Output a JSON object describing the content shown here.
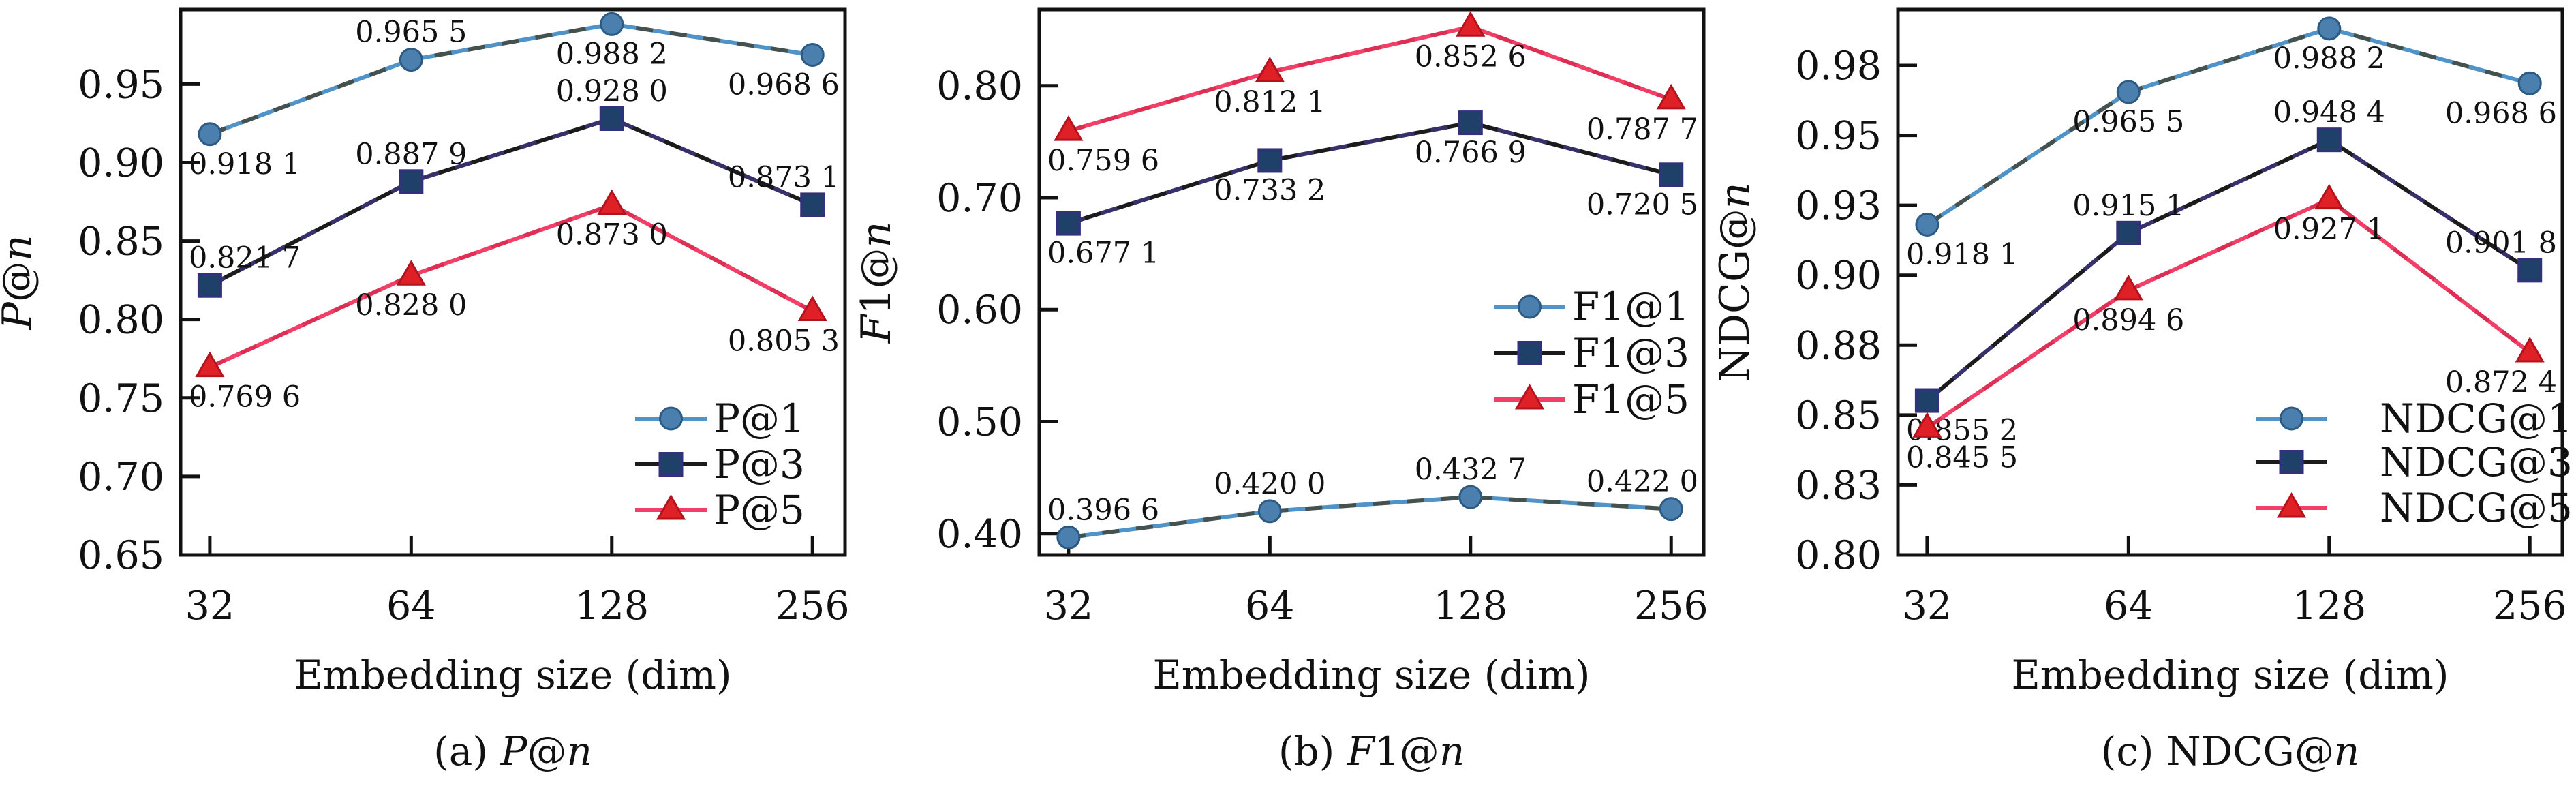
{
  "figure": {
    "background": "#ffffff",
    "frame_color": "#111111",
    "text_color": "#111111"
  },
  "chart_data": [
    {
      "type": "line",
      "panel_id": "a",
      "caption": [
        {
          "t": "(a) ",
          "i": false
        },
        {
          "t": "P",
          "i": true
        },
        {
          "t": "@",
          "i": false
        },
        {
          "t": "n",
          "i": true
        }
      ],
      "ylabel": [
        {
          "t": "P",
          "i": true
        },
        {
          "t": "@",
          "i": false
        },
        {
          "t": "n",
          "i": true
        }
      ],
      "xlabel": "Embedding size (dim)",
      "categories": [
        "32",
        "64",
        "128",
        "256"
      ],
      "x_values": [
        32,
        64,
        128,
        256
      ],
      "ylim": [
        0.65,
        0.9975
      ],
      "yticks": [
        {
          "v": 0.65,
          "label": "0.65"
        },
        {
          "v": 0.7,
          "label": "0.70"
        },
        {
          "v": 0.75,
          "label": "0.75"
        },
        {
          "v": 0.8,
          "label": "0.80"
        },
        {
          "v": 0.85,
          "label": "0.85"
        },
        {
          "v": 0.9,
          "label": "0.90"
        },
        {
          "v": 0.95,
          "label": "0.95"
        }
      ],
      "legend": {
        "position": "lower right",
        "line_x": 932,
        "label_x": 1047,
        "rows_y": [
          614,
          681,
          748
        ]
      },
      "series": [
        {
          "name": "P@1",
          "marker": "circle",
          "line_color": "#4f93c8",
          "overlay_color": "#454d47",
          "overlay_opacity": 0.95,
          "marker_fill": "#4a7fae",
          "marker_edge": "#2d5a82",
          "values": [
            0.9181,
            0.9655,
            0.9882,
            0.9686
          ],
          "point_labels": [
            "0.918 1",
            "0.965 5",
            "0.988 2",
            "0.968 6"
          ],
          "label_pos": [
            "below",
            "above",
            "below",
            "below"
          ]
        },
        {
          "name": "P@3",
          "marker": "square",
          "line_color": "#1b1b1b",
          "overlay_color": "#413a8c",
          "overlay_opacity": 0.7,
          "marker_fill": "#1f4068",
          "marker_edge": "#352f7e",
          "values": [
            0.8217,
            0.8879,
            0.928,
            0.8731
          ],
          "point_labels": [
            "0.821 7",
            "0.887 9",
            "0.928 0",
            "0.873 1"
          ],
          "label_pos": [
            "above",
            "above",
            "above",
            "above"
          ]
        },
        {
          "name": "P@5",
          "marker": "triangle",
          "line_color": "#f23f68",
          "overlay_color": "#c41d3a",
          "overlay_opacity": 0.45,
          "marker_fill": "#df2127",
          "marker_edge": "#b2131d",
          "values": [
            0.7696,
            0.828,
            0.873,
            0.8053
          ],
          "point_labels": [
            "0.769 6",
            "0.828 0",
            "0.873 0",
            "0.805 3"
          ],
          "label_pos": [
            "below",
            "below",
            "below",
            "below"
          ]
        }
      ]
    },
    {
      "type": "line",
      "panel_id": "b",
      "caption": [
        {
          "t": "(b) ",
          "i": false
        },
        {
          "t": "F",
          "i": true
        },
        {
          "t": "1@",
          "i": false
        },
        {
          "t": "n",
          "i": true
        }
      ],
      "ylabel": [
        {
          "t": "F",
          "i": true
        },
        {
          "t": "1@",
          "i": false
        },
        {
          "t": "n",
          "i": true
        }
      ],
      "xlabel": "Embedding size (dim)",
      "categories": [
        "32",
        "64",
        "128",
        "256"
      ],
      "x_values": [
        32,
        64,
        128,
        256
      ],
      "ylim": [
        0.381,
        0.868
      ],
      "yticks": [
        {
          "v": 0.4,
          "label": "0.40"
        },
        {
          "v": 0.5,
          "label": "0.50"
        },
        {
          "v": 0.6,
          "label": "0.60"
        },
        {
          "v": 0.7,
          "label": "0.70"
        },
        {
          "v": 0.8,
          "label": "0.80"
        }
      ],
      "legend": {
        "position": "center right",
        "line_x": 932,
        "label_x": 1047,
        "rows_y": [
          450,
          518,
          586
        ]
      },
      "series": [
        {
          "name": "F1@1",
          "marker": "circle",
          "line_color": "#4f93c8",
          "overlay_color": "#454d47",
          "overlay_opacity": 0.95,
          "marker_fill": "#4a7fae",
          "marker_edge": "#2d5a82",
          "values": [
            0.3966,
            0.42,
            0.4327,
            0.422
          ],
          "point_labels": [
            "0.396 6",
            "0.420 0",
            "0.432 7",
            "0.422 0"
          ],
          "label_pos": [
            "above",
            "above",
            "above",
            "above"
          ]
        },
        {
          "name": "F1@3",
          "marker": "square",
          "line_color": "#1b1b1b",
          "overlay_color": "#413a8c",
          "overlay_opacity": 0.7,
          "marker_fill": "#1f4068",
          "marker_edge": "#352f7e",
          "values": [
            0.6771,
            0.7332,
            0.7669,
            0.7205
          ],
          "point_labels": [
            "0.677 1",
            "0.733 2",
            "0.766 9",
            "0.720 5"
          ],
          "label_pos": [
            "below",
            "below",
            "below",
            "below"
          ]
        },
        {
          "name": "F1@5",
          "marker": "triangle",
          "line_color": "#f23f68",
          "overlay_color": "#c41d3a",
          "overlay_opacity": 0.45,
          "marker_fill": "#df2127",
          "marker_edge": "#b2131d",
          "values": [
            0.7596,
            0.8121,
            0.8526,
            0.7877
          ],
          "point_labels": [
            "0.759 6",
            "0.812 1",
            "0.852 6",
            "0.787 7"
          ],
          "label_pos": [
            "below",
            "below",
            "below",
            "below"
          ]
        }
      ]
    },
    {
      "type": "line",
      "panel_id": "c",
      "caption": [
        {
          "t": "(c) ",
          "i": false
        },
        {
          "t": "NDCG@",
          "i": false
        },
        {
          "t": "n",
          "i": true
        }
      ],
      "ylabel": [
        {
          "t": "NDCG@",
          "i": false
        },
        {
          "t": "n",
          "i": true
        }
      ],
      "xlabel": "Embedding size (dim)",
      "categories": [
        "32",
        "64",
        "128",
        "256"
      ],
      "x_values": [
        32,
        64,
        128,
        256
      ],
      "ylim": [
        0.8,
        0.995
      ],
      "yticks": [
        {
          "v": 0.8,
          "label": "0.80"
        },
        {
          "v": 0.825,
          "label": "0.83"
        },
        {
          "v": 0.85,
          "label": "0.85"
        },
        {
          "v": 0.875,
          "label": "0.88"
        },
        {
          "v": 0.9,
          "label": "0.90"
        },
        {
          "v": 0.925,
          "label": "0.93"
        },
        {
          "v": 0.95,
          "label": "0.95"
        },
        {
          "v": 0.975,
          "label": "0.98"
        }
      ],
      "legend": {
        "position": "lower right",
        "line_x": 790,
        "label_x": 972,
        "rows_y": [
          614,
          678,
          745
        ]
      },
      "series": [
        {
          "name": "NDCG@1",
          "marker": "circle",
          "line_color": "#4f93c8",
          "overlay_color": "#454d47",
          "overlay_opacity": 0.95,
          "marker_fill": "#4a7fae",
          "marker_edge": "#2d5a82",
          "values": [
            0.9181,
            0.9655,
            0.9882,
            0.9686
          ],
          "point_labels": [
            "0.918 1",
            "0.965 5",
            "0.988 2",
            "0.968 6"
          ],
          "label_pos": [
            "below",
            "below",
            "below",
            "below"
          ]
        },
        {
          "name": "NDCG@3",
          "marker": "square",
          "line_color": "#1b1b1b",
          "overlay_color": "#413a8c",
          "overlay_opacity": 0.7,
          "marker_fill": "#1f4068",
          "marker_edge": "#352f7e",
          "values": [
            0.8552,
            0.9151,
            0.9484,
            0.9018
          ],
          "point_labels": [
            "0.855 2",
            "0.915 1",
            "0.948 4",
            "0.901 8"
          ],
          "label_pos": [
            "below",
            "above",
            "above",
            "above"
          ]
        },
        {
          "name": "NDCG@5",
          "marker": "triangle",
          "line_color": "#f23f68",
          "overlay_color": "#c41d3a",
          "overlay_opacity": 0.45,
          "marker_fill": "#df2127",
          "marker_edge": "#b2131d",
          "values": [
            0.8455,
            0.8946,
            0.9271,
            0.8724
          ],
          "point_labels": [
            "0.845 5",
            "0.894 6",
            "0.927 1",
            "0.872 4"
          ],
          "label_pos": [
            "below",
            "below",
            "below",
            "below"
          ]
        }
      ]
    }
  ]
}
